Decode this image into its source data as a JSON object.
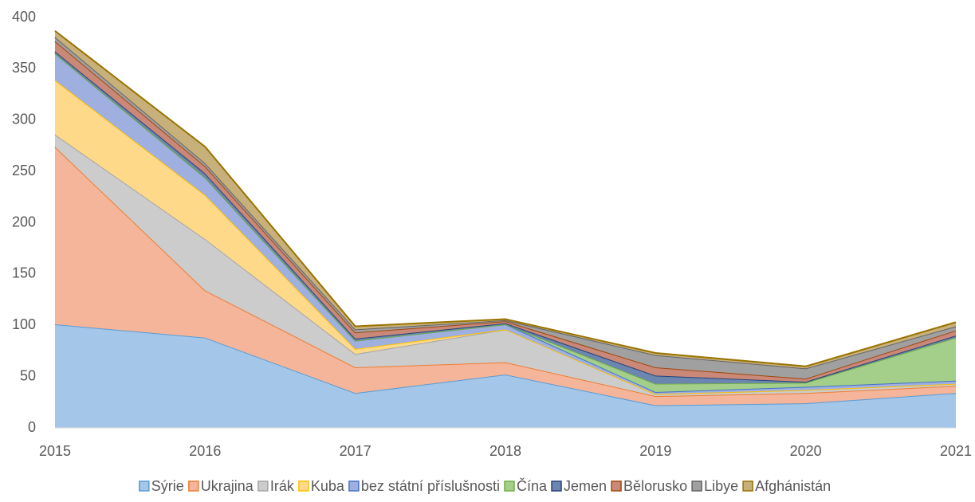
{
  "chart_data": {
    "type": "stacked_area",
    "categories": [
      "2015",
      "2016",
      "2017",
      "2018",
      "2019",
      "2020",
      "2021"
    ],
    "ylim": [
      0,
      400
    ],
    "yticks": [
      0,
      50,
      100,
      150,
      200,
      250,
      300,
      350,
      400
    ],
    "legend": "bottom",
    "series": [
      {
        "name": "Sýrie",
        "color": "#5b9bd5",
        "fill": "#a4c6e8",
        "values": [
          101,
          88,
          34,
          52,
          22,
          24,
          34
        ]
      },
      {
        "name": "Ukrajina",
        "color": "#ed7d31",
        "fill": "#f4b59a",
        "values": [
          173,
          46,
          25,
          12,
          9,
          10,
          7
        ]
      },
      {
        "name": "Irák",
        "color": "#a5a5a5",
        "fill": "#cccccc",
        "values": [
          12,
          50,
          13,
          32,
          2,
          3,
          2
        ]
      },
      {
        "name": "Kuba",
        "color": "#ffc000",
        "fill": "#ffd98a",
        "values": [
          53,
          43,
          5,
          0,
          0,
          0,
          0
        ]
      },
      {
        "name": "bez státní příslušnosti",
        "color": "#4472c4",
        "fill": "#9fb0e0",
        "values": [
          26,
          17,
          8,
          5,
          2,
          3,
          3
        ]
      },
      {
        "name": "Čína",
        "color": "#70ad47",
        "fill": "#a3cf8a",
        "values": [
          0,
          0,
          0,
          0,
          8,
          4,
          42
        ]
      },
      {
        "name": "Jemen",
        "color": "#264478",
        "fill": "#6d86b0",
        "values": [
          2,
          4,
          2,
          1,
          8,
          1,
          2
        ]
      },
      {
        "name": "Bělorusko",
        "color": "#9e480e",
        "fill": "#c98878",
        "values": [
          10,
          7,
          6,
          2,
          8,
          3,
          5
        ]
      },
      {
        "name": "Libye",
        "color": "#636363",
        "fill": "#a0a0a0",
        "values": [
          4,
          3,
          3,
          1,
          12,
          10,
          4
        ]
      },
      {
        "name": "Afghánistán",
        "color": "#997300",
        "fill": "#c8b07a",
        "values": [
          6,
          16,
          3,
          1,
          2,
          2,
          4
        ]
      }
    ]
  }
}
